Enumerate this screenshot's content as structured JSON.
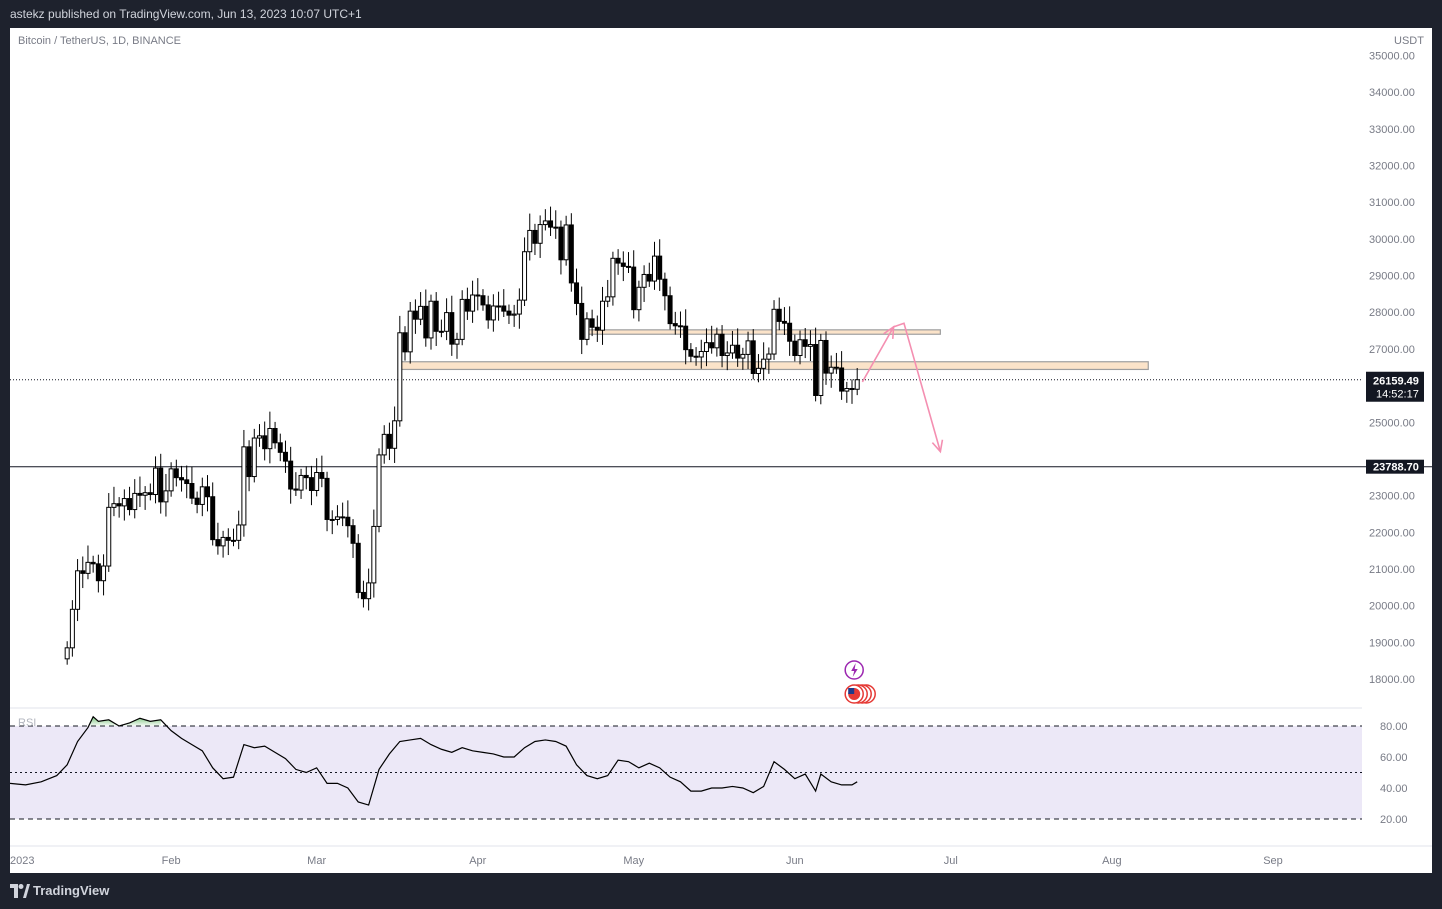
{
  "header": {
    "published_text": "astekz published on TradingView.com, Jun 13, 2023 10:07 UTC+1"
  },
  "chart": {
    "symbol_label": "Bitcoin / TetherUS, 1D, BINANCE"
  },
  "footer": {
    "brand": "TradingView"
  },
  "colors": {
    "background": "#1e222d",
    "chart_bg": "#ffffff",
    "candle": "#000000",
    "zone_fill": "#fbe3c9",
    "zone_border": "#9e9e9e",
    "arrow": "#f48fb1",
    "rsi_band": "#ece8f7",
    "rsi_overbought_fill": "#4caf50",
    "rsi_line": "#000000"
  },
  "chart_data": [
    {
      "type": "candlestick",
      "title": "Bitcoin / TetherUS, 1D, BINANCE",
      "y_unit": "USDT",
      "ylim": [
        17500,
        35200
      ],
      "y_ticks": [
        18000,
        19000,
        20000,
        21000,
        22000,
        23000,
        25000,
        27000,
        28000,
        29000,
        30000,
        31000,
        32000,
        33000,
        34000,
        35000
      ],
      "y_tick_labels": [
        "18000.00",
        "19000.00",
        "20000.00",
        "21000.00",
        "22000.00",
        "23000.00",
        "25000.00",
        "27000.00",
        "28000.00",
        "29000.00",
        "30000.00",
        "31000.00",
        "32000.00",
        "33000.00",
        "34000.00",
        "35000.00"
      ],
      "x_range": [
        "2023-01-01",
        "2023-09-15"
      ],
      "x_ticks": [
        {
          "date": "2023-01-01",
          "label": "2023"
        },
        {
          "date": "2023-02-01",
          "label": "Feb"
        },
        {
          "date": "2023-03-01",
          "label": "Mar"
        },
        {
          "date": "2023-04-01",
          "label": "Apr"
        },
        {
          "date": "2023-05-01",
          "label": "May"
        },
        {
          "date": "2023-06-01",
          "label": "Jun"
        },
        {
          "date": "2023-07-01",
          "label": "Jul"
        },
        {
          "date": "2023-08-01",
          "label": "Aug"
        },
        {
          "date": "2023-09-01",
          "label": "Sep"
        }
      ],
      "closes": [
        [
          "2023-01-12",
          18850
        ],
        [
          "2023-01-13",
          19900
        ],
        [
          "2023-01-14",
          20950
        ],
        [
          "2023-01-15",
          20880
        ],
        [
          "2023-01-16",
          21180
        ],
        [
          "2023-01-17",
          21140
        ],
        [
          "2023-01-18",
          20680
        ],
        [
          "2023-01-19",
          21080
        ],
        [
          "2023-01-20",
          22680
        ],
        [
          "2023-01-21",
          22780
        ],
        [
          "2023-01-22",
          22720
        ],
        [
          "2023-01-23",
          22920
        ],
        [
          "2023-01-24",
          22620
        ],
        [
          "2023-01-25",
          23060
        ],
        [
          "2023-01-26",
          23010
        ],
        [
          "2023-01-27",
          23080
        ],
        [
          "2023-01-28",
          23030
        ],
        [
          "2023-01-29",
          23750
        ],
        [
          "2023-01-30",
          22830
        ],
        [
          "2023-01-31",
          23130
        ],
        [
          "2023-02-01",
          23730
        ],
        [
          "2023-02-02",
          23490
        ],
        [
          "2023-02-03",
          23430
        ],
        [
          "2023-02-04",
          23330
        ],
        [
          "2023-02-05",
          22930
        ],
        [
          "2023-02-06",
          22760
        ],
        [
          "2023-02-07",
          23240
        ],
        [
          "2023-02-08",
          22970
        ],
        [
          "2023-02-09",
          21800
        ],
        [
          "2023-02-10",
          21630
        ],
        [
          "2023-02-11",
          21860
        ],
        [
          "2023-02-12",
          21780
        ],
        [
          "2023-02-13",
          21780
        ],
        [
          "2023-02-14",
          22200
        ],
        [
          "2023-02-15",
          24330
        ],
        [
          "2023-02-16",
          23520
        ],
        [
          "2023-02-17",
          24570
        ],
        [
          "2023-02-18",
          24630
        ],
        [
          "2023-02-19",
          24280
        ],
        [
          "2023-02-20",
          24830
        ],
        [
          "2023-02-21",
          24440
        ],
        [
          "2023-02-22",
          24180
        ],
        [
          "2023-02-23",
          23940
        ],
        [
          "2023-02-24",
          23180
        ],
        [
          "2023-02-25",
          23150
        ],
        [
          "2023-02-26",
          23550
        ],
        [
          "2023-02-27",
          23490
        ],
        [
          "2023-02-28",
          23140
        ],
        [
          "2023-03-01",
          23630
        ],
        [
          "2023-03-02",
          23470
        ],
        [
          "2023-03-03",
          22350
        ],
        [
          "2023-03-04",
          22350
        ],
        [
          "2023-03-05",
          22420
        ],
        [
          "2023-03-06",
          22410
        ],
        [
          "2023-03-07",
          22180
        ],
        [
          "2023-03-08",
          21700
        ],
        [
          "2023-03-09",
          20360
        ],
        [
          "2023-03-10",
          20190
        ],
        [
          "2023-03-11",
          20620
        ],
        [
          "2023-03-12",
          22160
        ],
        [
          "2023-03-13",
          24110
        ],
        [
          "2023-03-14",
          24670
        ],
        [
          "2023-03-15",
          24290
        ],
        [
          "2023-03-16",
          25040
        ],
        [
          "2023-03-17",
          27440
        ],
        [
          "2023-03-18",
          26920
        ],
        [
          "2023-03-19",
          28030
        ],
        [
          "2023-03-20",
          27810
        ],
        [
          "2023-03-21",
          28160
        ],
        [
          "2023-03-22",
          27300
        ],
        [
          "2023-03-23",
          28300
        ],
        [
          "2023-03-24",
          27480
        ],
        [
          "2023-03-25",
          27480
        ],
        [
          "2023-03-26",
          27990
        ],
        [
          "2023-03-27",
          27130
        ],
        [
          "2023-03-28",
          27260
        ],
        [
          "2023-03-29",
          28350
        ],
        [
          "2023-03-30",
          28030
        ],
        [
          "2023-03-31",
          28470
        ],
        [
          "2023-04-01",
          28450
        ],
        [
          "2023-04-02",
          28200
        ],
        [
          "2023-04-03",
          27790
        ],
        [
          "2023-04-04",
          28170
        ],
        [
          "2023-04-05",
          28170
        ],
        [
          "2023-04-06",
          28030
        ],
        [
          "2023-04-07",
          27920
        ],
        [
          "2023-04-08",
          27950
        ],
        [
          "2023-04-09",
          28330
        ],
        [
          "2023-04-10",
          29650
        ],
        [
          "2023-04-11",
          30230
        ],
        [
          "2023-04-12",
          29880
        ],
        [
          "2023-04-13",
          30390
        ],
        [
          "2023-04-14",
          30490
        ],
        [
          "2023-04-15",
          30320
        ],
        [
          "2023-04-16",
          30320
        ],
        [
          "2023-04-17",
          29430
        ],
        [
          "2023-04-18",
          30380
        ],
        [
          "2023-04-19",
          28800
        ],
        [
          "2023-04-20",
          28240
        ],
        [
          "2023-04-21",
          27260
        ],
        [
          "2023-04-22",
          27820
        ],
        [
          "2023-04-23",
          27590
        ],
        [
          "2023-04-24",
          27510
        ],
        [
          "2023-04-25",
          28300
        ],
        [
          "2023-04-26",
          28420
        ],
        [
          "2023-04-27",
          29470
        ],
        [
          "2023-04-28",
          29340
        ],
        [
          "2023-04-29",
          29250
        ],
        [
          "2023-04-30",
          29230
        ],
        [
          "2023-05-01",
          28070
        ],
        [
          "2023-05-02",
          28680
        ],
        [
          "2023-05-03",
          29030
        ],
        [
          "2023-05-04",
          28850
        ],
        [
          "2023-05-05",
          29530
        ],
        [
          "2023-05-06",
          28900
        ],
        [
          "2023-05-07",
          28450
        ],
        [
          "2023-05-08",
          27690
        ],
        [
          "2023-05-09",
          27630
        ],
        [
          "2023-05-10",
          27620
        ],
        [
          "2023-05-11",
          26980
        ],
        [
          "2023-05-12",
          26800
        ],
        [
          "2023-05-13",
          26780
        ],
        [
          "2023-05-14",
          26930
        ],
        [
          "2023-05-15",
          27170
        ],
        [
          "2023-05-16",
          27030
        ],
        [
          "2023-05-17",
          27400
        ],
        [
          "2023-05-18",
          26820
        ],
        [
          "2023-05-19",
          26890
        ],
        [
          "2023-05-20",
          27100
        ],
        [
          "2023-05-21",
          26750
        ],
        [
          "2023-05-22",
          26850
        ],
        [
          "2023-05-23",
          27220
        ],
        [
          "2023-05-24",
          26330
        ],
        [
          "2023-05-25",
          26470
        ],
        [
          "2023-05-26",
          26720
        ],
        [
          "2023-05-27",
          26860
        ],
        [
          "2023-05-28",
          28080
        ],
        [
          "2023-05-29",
          27750
        ],
        [
          "2023-05-30",
          27700
        ],
        [
          "2023-05-31",
          27210
        ],
        [
          "2023-06-01",
          26820
        ],
        [
          "2023-06-02",
          27250
        ],
        [
          "2023-06-03",
          27070
        ],
        [
          "2023-06-04",
          27120
        ],
        [
          "2023-06-05",
          25730
        ],
        [
          "2023-06-06",
          27230
        ],
        [
          "2023-06-07",
          26340
        ],
        [
          "2023-06-08",
          26500
        ],
        [
          "2023-06-09",
          26480
        ],
        [
          "2023-06-10",
          25850
        ],
        [
          "2023-06-11",
          25920
        ],
        [
          "2023-06-12",
          25900
        ],
        [
          "2023-06-13",
          26159.49
        ]
      ],
      "drawings": {
        "resistance_zone_upper": [
          27400,
          27520
        ],
        "resistance_zone_lower": [
          26440,
          26650
        ],
        "horizontal_line": 23788.7,
        "projection_arrow": [
          [
            "2023-06-14",
            26100
          ],
          [
            "2023-06-20",
            27600
          ],
          [
            "2023-06-22",
            27700
          ],
          [
            "2023-06-29",
            24200
          ]
        ]
      },
      "last_price_label": "26159.49",
      "countdown_label": "14:52:17",
      "horizontal_line_label": "23788.70"
    },
    {
      "type": "line",
      "title": "RSI",
      "ylim": [
        14,
        89
      ],
      "y_ticks": [
        20,
        40,
        60,
        80
      ],
      "y_tick_labels": [
        "20.00",
        "40.00",
        "60.00",
        "80.00"
      ],
      "levels": [
        20,
        50,
        80
      ],
      "series": [
        {
          "values": [
            [
              "2023-01-01",
              43
            ],
            [
              "2023-01-04",
              42
            ],
            [
              "2023-01-07",
              44
            ],
            [
              "2023-01-10",
              48
            ],
            [
              "2023-01-12",
              55
            ],
            [
              "2023-01-14",
              70
            ],
            [
              "2023-01-16",
              79
            ],
            [
              "2023-01-17",
              86
            ],
            [
              "2023-01-18",
              83
            ],
            [
              "2023-01-20",
              84
            ],
            [
              "2023-01-22",
              80
            ],
            [
              "2023-01-24",
              82
            ],
            [
              "2023-01-26",
              85
            ],
            [
              "2023-01-28",
              83
            ],
            [
              "2023-01-30",
              84
            ],
            [
              "2023-02-01",
              77
            ],
            [
              "2023-02-03",
              72
            ],
            [
              "2023-02-05",
              68
            ],
            [
              "2023-02-07",
              64
            ],
            [
              "2023-02-09",
              53
            ],
            [
              "2023-02-11",
              46
            ],
            [
              "2023-02-13",
              47
            ],
            [
              "2023-02-15",
              68
            ],
            [
              "2023-02-17",
              66
            ],
            [
              "2023-02-19",
              67
            ],
            [
              "2023-02-21",
              63
            ],
            [
              "2023-02-23",
              59
            ],
            [
              "2023-02-25",
              52
            ],
            [
              "2023-02-27",
              50
            ],
            [
              "2023-03-01",
              53
            ],
            [
              "2023-03-03",
              43
            ],
            [
              "2023-03-05",
              43
            ],
            [
              "2023-03-07",
              40
            ],
            [
              "2023-03-09",
              31
            ],
            [
              "2023-03-11",
              29
            ],
            [
              "2023-03-13",
              52
            ],
            [
              "2023-03-15",
              62
            ],
            [
              "2023-03-17",
              70
            ],
            [
              "2023-03-19",
              71
            ],
            [
              "2023-03-21",
              72
            ],
            [
              "2023-03-23",
              68
            ],
            [
              "2023-03-25",
              65
            ],
            [
              "2023-03-27",
              63
            ],
            [
              "2023-03-29",
              66
            ],
            [
              "2023-03-31",
              64
            ],
            [
              "2023-04-02",
              63
            ],
            [
              "2023-04-04",
              62
            ],
            [
              "2023-04-06",
              60
            ],
            [
              "2023-04-08",
              60
            ],
            [
              "2023-04-10",
              66
            ],
            [
              "2023-04-12",
              70
            ],
            [
              "2023-04-14",
              71
            ],
            [
              "2023-04-16",
              70
            ],
            [
              "2023-04-18",
              67
            ],
            [
              "2023-04-20",
              55
            ],
            [
              "2023-04-22",
              48
            ],
            [
              "2023-04-24",
              46
            ],
            [
              "2023-04-26",
              48
            ],
            [
              "2023-04-28",
              58
            ],
            [
              "2023-04-30",
              57
            ],
            [
              "2023-05-02",
              53
            ],
            [
              "2023-05-04",
              56
            ],
            [
              "2023-05-06",
              53
            ],
            [
              "2023-05-08",
              47
            ],
            [
              "2023-05-10",
              44
            ],
            [
              "2023-05-12",
              38
            ],
            [
              "2023-05-14",
              38
            ],
            [
              "2023-05-16",
              40
            ],
            [
              "2023-05-18",
              40
            ],
            [
              "2023-05-20",
              41
            ],
            [
              "2023-05-22",
              40
            ],
            [
              "2023-05-24",
              37
            ],
            [
              "2023-05-26",
              41
            ],
            [
              "2023-05-28",
              57
            ],
            [
              "2023-05-30",
              52
            ],
            [
              "2023-06-01",
              46
            ],
            [
              "2023-06-03",
              49
            ],
            [
              "2023-06-05",
              38
            ],
            [
              "2023-06-06",
              49
            ],
            [
              "2023-06-08",
              44
            ],
            [
              "2023-06-10",
              42
            ],
            [
              "2023-06-12",
              42
            ],
            [
              "2023-06-13",
              44
            ]
          ]
        }
      ]
    }
  ],
  "indicator": {
    "label": "RSI"
  },
  "axis": {
    "unit_label": "USDT"
  }
}
